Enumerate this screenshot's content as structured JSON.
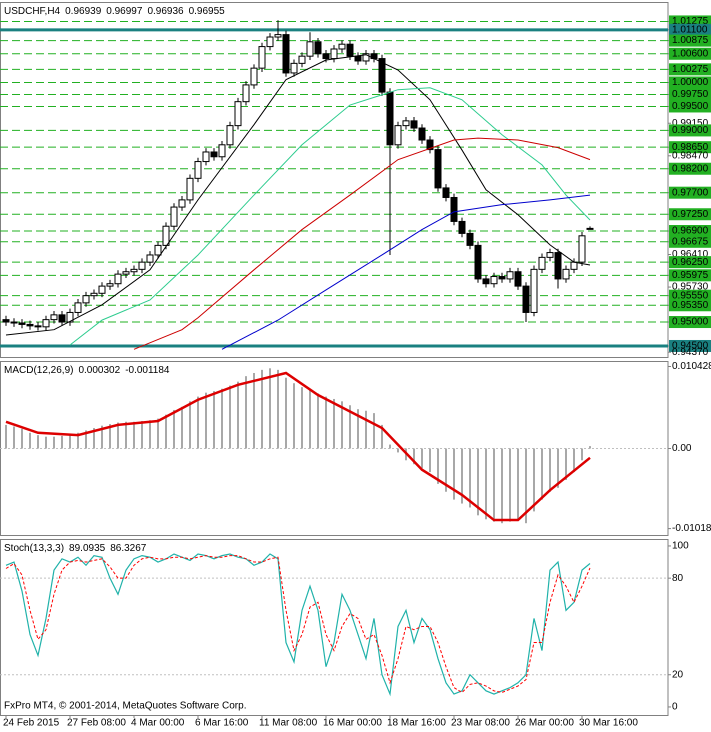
{
  "chart_data": [
    {
      "type": "candlestick",
      "title": "USDCHF,H4",
      "open": [
        0.9505,
        0.95,
        0.9498,
        0.9495,
        0.9492,
        0.949,
        0.9505,
        0.9515,
        0.95,
        0.952,
        0.954,
        0.9555,
        0.956,
        0.9575,
        0.958,
        0.96,
        0.9605,
        0.961,
        0.9625,
        0.964,
        0.966,
        0.97,
        0.974,
        0.9755,
        0.98,
        0.9835,
        0.9855,
        0.9845,
        0.987,
        0.991,
        0.996,
        0.9995,
        1.003,
        1.0075,
        1.0095,
        1.01,
        1.002,
        1.004,
        1.0055,
        1.0085,
        1.006,
        1.005,
        1.007,
        1.008,
        1.0055,
        1.0045,
        1.006,
        1.005,
        0.998,
        0.987,
        0.991,
        0.992,
        0.9905,
        0.988,
        0.986,
        0.978,
        0.976,
        0.971,
        0.9685,
        0.966,
        0.959,
        0.958,
        0.9595,
        0.959,
        0.9605,
        0.9575,
        0.952,
        0.961,
        0.9635,
        0.9645,
        0.959,
        0.961,
        0.9625,
        0.96939
      ],
      "high": [
        0.9513,
        0.9508,
        0.9506,
        0.9503,
        0.95,
        0.9513,
        0.9523,
        0.9523,
        0.9528,
        0.9548,
        0.9563,
        0.9568,
        0.9583,
        0.9588,
        0.9608,
        0.9613,
        0.9618,
        0.9633,
        0.9648,
        0.9668,
        0.9708,
        0.9748,
        0.9763,
        0.9808,
        0.9843,
        0.9863,
        0.9863,
        0.9878,
        0.9918,
        0.9968,
        1.0003,
        1.0038,
        1.0083,
        1.0103,
        1.013,
        1.0108,
        1.0048,
        1.0063,
        1.0105,
        1.0093,
        1.0068,
        1.0078,
        1.0088,
        1.0088,
        1.0063,
        1.0068,
        1.0068,
        1.0058,
        0.9988,
        0.9918,
        0.9928,
        0.9928,
        0.9913,
        0.9888,
        0.9868,
        0.9788,
        0.9768,
        0.9718,
        0.9693,
        0.9668,
        0.9598,
        0.9603,
        0.9603,
        0.9613,
        0.9613,
        0.9583,
        0.9618,
        0.9643,
        0.9653,
        0.9653,
        0.9618,
        0.9633,
        0.9688,
        0.96997
      ],
      "low": [
        0.9492,
        0.949,
        0.9487,
        0.9484,
        0.9482,
        0.9482,
        0.9497,
        0.9492,
        0.9492,
        0.9512,
        0.9532,
        0.9547,
        0.9552,
        0.9567,
        0.9572,
        0.9592,
        0.9597,
        0.9602,
        0.9617,
        0.9632,
        0.9652,
        0.9692,
        0.9732,
        0.9747,
        0.9792,
        0.9827,
        0.9837,
        0.9837,
        0.9862,
        0.9902,
        0.9952,
        0.9987,
        1.0022,
        1.0067,
        1.0087,
        1.0012,
        1.0012,
        1.0032,
        1.0047,
        1.0052,
        1.0042,
        1.0042,
        1.0062,
        1.0047,
        1.0037,
        1.0037,
        1.0042,
        0.9972,
        0.964,
        0.9862,
        0.9902,
        0.9897,
        0.9872,
        0.9852,
        0.9772,
        0.9752,
        0.9702,
        0.9677,
        0.9652,
        0.9582,
        0.9572,
        0.9572,
        0.9582,
        0.9582,
        0.9567,
        0.95,
        0.9512,
        0.9602,
        0.9627,
        0.957,
        0.9582,
        0.9602,
        0.9617,
        0.96936
      ],
      "close": [
        0.95,
        0.9498,
        0.9495,
        0.9492,
        0.949,
        0.9505,
        0.9515,
        0.95,
        0.952,
        0.954,
        0.9555,
        0.956,
        0.9575,
        0.958,
        0.96,
        0.9605,
        0.961,
        0.9625,
        0.964,
        0.966,
        0.97,
        0.974,
        0.9755,
        0.98,
        0.9835,
        0.9855,
        0.9845,
        0.987,
        0.991,
        0.996,
        0.9995,
        1.003,
        1.0075,
        1.0095,
        1.01,
        1.002,
        1.004,
        1.0055,
        1.0085,
        1.006,
        1.005,
        1.007,
        1.008,
        1.0055,
        1.0045,
        1.006,
        1.005,
        0.998,
        0.987,
        0.991,
        0.992,
        0.9905,
        0.988,
        0.986,
        0.978,
        0.976,
        0.971,
        0.9685,
        0.966,
        0.959,
        0.958,
        0.9595,
        0.959,
        0.9605,
        0.9575,
        0.952,
        0.961,
        0.9635,
        0.9645,
        0.959,
        0.961,
        0.9625,
        0.968,
        0.96955
      ],
      "bull_color": "#ffffff",
      "bear_color": "#000000",
      "overlays": [
        {
          "color": "#000000",
          "x": [
            0,
            6,
            12,
            18,
            24,
            31,
            35,
            40,
            45,
            49,
            53,
            57,
            60,
            64,
            68,
            71,
            73
          ],
          "values": [
            0.9473,
            0.9484,
            0.9536,
            0.9609,
            0.9755,
            0.9912,
            1.0006,
            1.0047,
            1.0058,
            1.0026,
            0.9964,
            0.9859,
            0.9776,
            0.9724,
            0.9661,
            0.9625,
            0.9619
          ]
        },
        {
          "color": "#2ecc8f",
          "x": [
            8,
            12,
            18,
            24,
            31,
            37,
            43,
            49,
            53,
            57,
            62,
            67,
            70,
            73
          ],
          "values": [
            0.9452,
            0.9504,
            0.9546,
            0.964,
            0.9765,
            0.987,
            0.9953,
            0.9985,
            0.9989,
            0.9964,
            0.9891,
            0.9828,
            0.9765,
            0.9713
          ]
        },
        {
          "color": "#cc0000",
          "x": [
            16,
            22,
            24,
            31,
            37,
            43,
            49,
            56,
            59,
            64,
            69,
            73
          ],
          "values": [
            0.9443,
            0.9484,
            0.9509,
            0.9609,
            0.9693,
            0.9765,
            0.9839,
            0.988,
            0.9884,
            0.988,
            0.9864,
            0.9839
          ]
        },
        {
          "color": "#0000cc",
          "x": [
            27,
            34,
            40,
            47,
            52,
            56,
            62,
            68,
            73
          ],
          "values": [
            0.9443,
            0.9504,
            0.9567,
            0.964,
            0.9693,
            0.973,
            0.9745,
            0.9755,
            0.9765
          ]
        }
      ],
      "ylim": [
        0.9427,
        1.0166
      ],
      "yticks": [
        {
          "value": 1.01275,
          "label": "1.01275"
        },
        {
          "value": 1.011,
          "label": "1.01100"
        },
        {
          "value": 1.00875,
          "label": "1.00875"
        },
        {
          "value": 1.006,
          "label": "1.00600"
        },
        {
          "value": 1.00275,
          "label": "1.00275"
        },
        {
          "value": 1.0,
          "label": "1.00000"
        },
        {
          "value": 0.9975,
          "label": "0.99750"
        },
        {
          "value": 0.995,
          "label": "0.99500"
        },
        {
          "value": 0.9915,
          "label": "0.99150"
        },
        {
          "value": 0.99,
          "label": "0.99000"
        },
        {
          "value": 0.9865,
          "label": "0.98650"
        },
        {
          "value": 0.9847,
          "label": "0.98470"
        },
        {
          "value": 0.982,
          "label": "0.98200"
        },
        {
          "value": 0.977,
          "label": "0.97700"
        },
        {
          "value": 0.9725,
          "label": "0.97250"
        },
        {
          "value": 0.969,
          "label": "0.96900"
        },
        {
          "value": 0.96675,
          "label": "0.96675"
        },
        {
          "value": 0.9641,
          "label": "0.96410"
        },
        {
          "value": 0.9625,
          "label": "0.96250"
        },
        {
          "value": 0.95975,
          "label": "0.95975"
        },
        {
          "value": 0.9573,
          "label": "0.95730"
        },
        {
          "value": 0.9555,
          "label": "0.95550"
        },
        {
          "value": 0.9535,
          "label": "0.95350"
        },
        {
          "value": 0.95,
          "label": "0.95000"
        },
        {
          "value": 0.945,
          "label": "0.94500"
        },
        {
          "value": 0.9437,
          "label": "0.94370"
        }
      ],
      "levels": [
        1.01275,
        1.00875,
        1.006,
        1.00275,
        1.0,
        0.9975,
        0.995,
        0.99,
        0.9865,
        0.982,
        0.977,
        0.9725,
        0.969,
        0.96675,
        0.9625,
        0.95975,
        0.9555,
        0.9535,
        0.95
      ],
      "level_color": "#22b022",
      "key_levels": [
        1.011,
        0.945
      ],
      "key_level_color": "#1a8080"
    },
    {
      "type": "macd",
      "title": "MACD(12,26,9)",
      "histogram": {
        "color": "#a8a8a8",
        "values": [
          0.003,
          0.0028,
          0.0025,
          0.002,
          0.0017,
          0.0015,
          0.0015,
          0.0016,
          0.0018,
          0.002,
          0.0023,
          0.0026,
          0.0029,
          0.0031,
          0.0033,
          0.0034,
          0.0034,
          0.0035,
          0.0036,
          0.0038,
          0.0043,
          0.0049,
          0.0053,
          0.006,
          0.0066,
          0.0071,
          0.0073,
          0.0076,
          0.008,
          0.0085,
          0.0092,
          0.0096,
          0.01,
          0.0102,
          0.01,
          0.009,
          0.0083,
          0.0078,
          0.0075,
          0.007,
          0.0066,
          0.0063,
          0.006,
          0.0055,
          0.005,
          0.0048,
          0.0045,
          0.003,
          0.0005,
          -0.0005,
          -0.0015,
          -0.002,
          -0.0025,
          -0.003,
          -0.0045,
          -0.0055,
          -0.0065,
          -0.007,
          -0.0075,
          -0.0085,
          -0.009,
          -0.0093,
          -0.0095,
          -0.0093,
          -0.009,
          -0.0095,
          -0.008,
          -0.0065,
          -0.0055,
          -0.005,
          -0.004,
          -0.003,
          -0.0015,
          0.000302
        ]
      },
      "signal": {
        "color": "#dd0000",
        "x": [
          0,
          4,
          9,
          14,
          19,
          24,
          29,
          35,
          39,
          47,
          52,
          57,
          61,
          64,
          68,
          73
        ],
        "values": [
          0.0034,
          0.002,
          0.0017,
          0.003,
          0.0035,
          0.0062,
          0.0081,
          0.0096,
          0.0068,
          0.0026,
          -0.0027,
          -0.0059,
          -0.0091,
          -0.0091,
          -0.0053,
          -0.001184
        ]
      },
      "ylim": [
        -0.011,
        0.011
      ],
      "yticks": [
        0.010428,
        {
          "value": 0,
          "label": "0.00"
        },
        -0.010186
      ]
    },
    {
      "type": "stochastic",
      "title": "Stoch(13,3,3)",
      "main": {
        "color": "#20b2aa",
        "values": [
          88,
          90,
          72,
          45,
          32,
          55,
          85,
          92,
          90,
          93,
          88,
          94,
          93,
          80,
          70,
          85,
          92,
          94,
          93,
          90,
          92,
          95,
          93,
          91,
          95,
          94,
          92,
          94,
          95,
          93,
          92,
          88,
          90,
          95,
          92,
          40,
          28,
          60,
          75,
          60,
          25,
          40,
          70,
          60,
          45,
          30,
          55,
          20,
          8,
          50,
          60,
          40,
          55,
          48,
          30,
          15,
          8,
          10,
          20,
          15,
          10,
          8,
          10,
          12,
          15,
          20,
          55,
          35,
          85,
          90,
          60,
          65,
          85,
          89.0935
        ]
      },
      "signal": {
        "color": "#ff0000",
        "values": [
          86,
          89,
          82,
          60,
          42,
          48,
          70,
          85,
          90,
          91,
          90,
          91,
          92,
          87,
          80,
          80,
          88,
          92,
          93,
          92,
          92,
          93,
          93,
          92,
          93,
          94,
          93,
          93,
          94,
          94,
          92,
          90,
          90,
          92,
          93,
          60,
          35,
          45,
          62,
          65,
          45,
          35,
          50,
          58,
          55,
          42,
          45,
          32,
          15,
          30,
          50,
          48,
          50,
          50,
          40,
          25,
          12,
          9,
          14,
          15,
          13,
          10,
          9,
          11,
          13,
          17,
          40,
          40,
          65,
          82,
          75,
          65,
          75,
          86.3267
        ]
      },
      "levels": [
        20,
        80
      ],
      "ylim": [
        -5,
        103.7
      ],
      "yticks": [
        100,
        80,
        20,
        0
      ],
      "xticks": [
        {
          "value": 0,
          "label": "24 Feb 2015"
        },
        {
          "value": 8,
          "label": "27 Feb 08:00"
        },
        {
          "value": 16,
          "label": "4 Mar 00:00"
        },
        {
          "value": 24,
          "label": "6 Mar 16:00"
        },
        {
          "value": 32,
          "label": "11 Mar 08:00"
        },
        {
          "value": 40,
          "label": "16 Mar 00:00"
        },
        {
          "value": 48,
          "label": "18 Mar 16:00"
        },
        {
          "value": 56,
          "label": "23 Mar 08:00"
        },
        {
          "value": 64,
          "label": "26 Mar 00:00"
        },
        {
          "value": 72,
          "label": "30 Mar 16:00"
        }
      ],
      "footer": "FxPro MT4, © 2001-2014, MetaQuotes Software Corp."
    }
  ]
}
